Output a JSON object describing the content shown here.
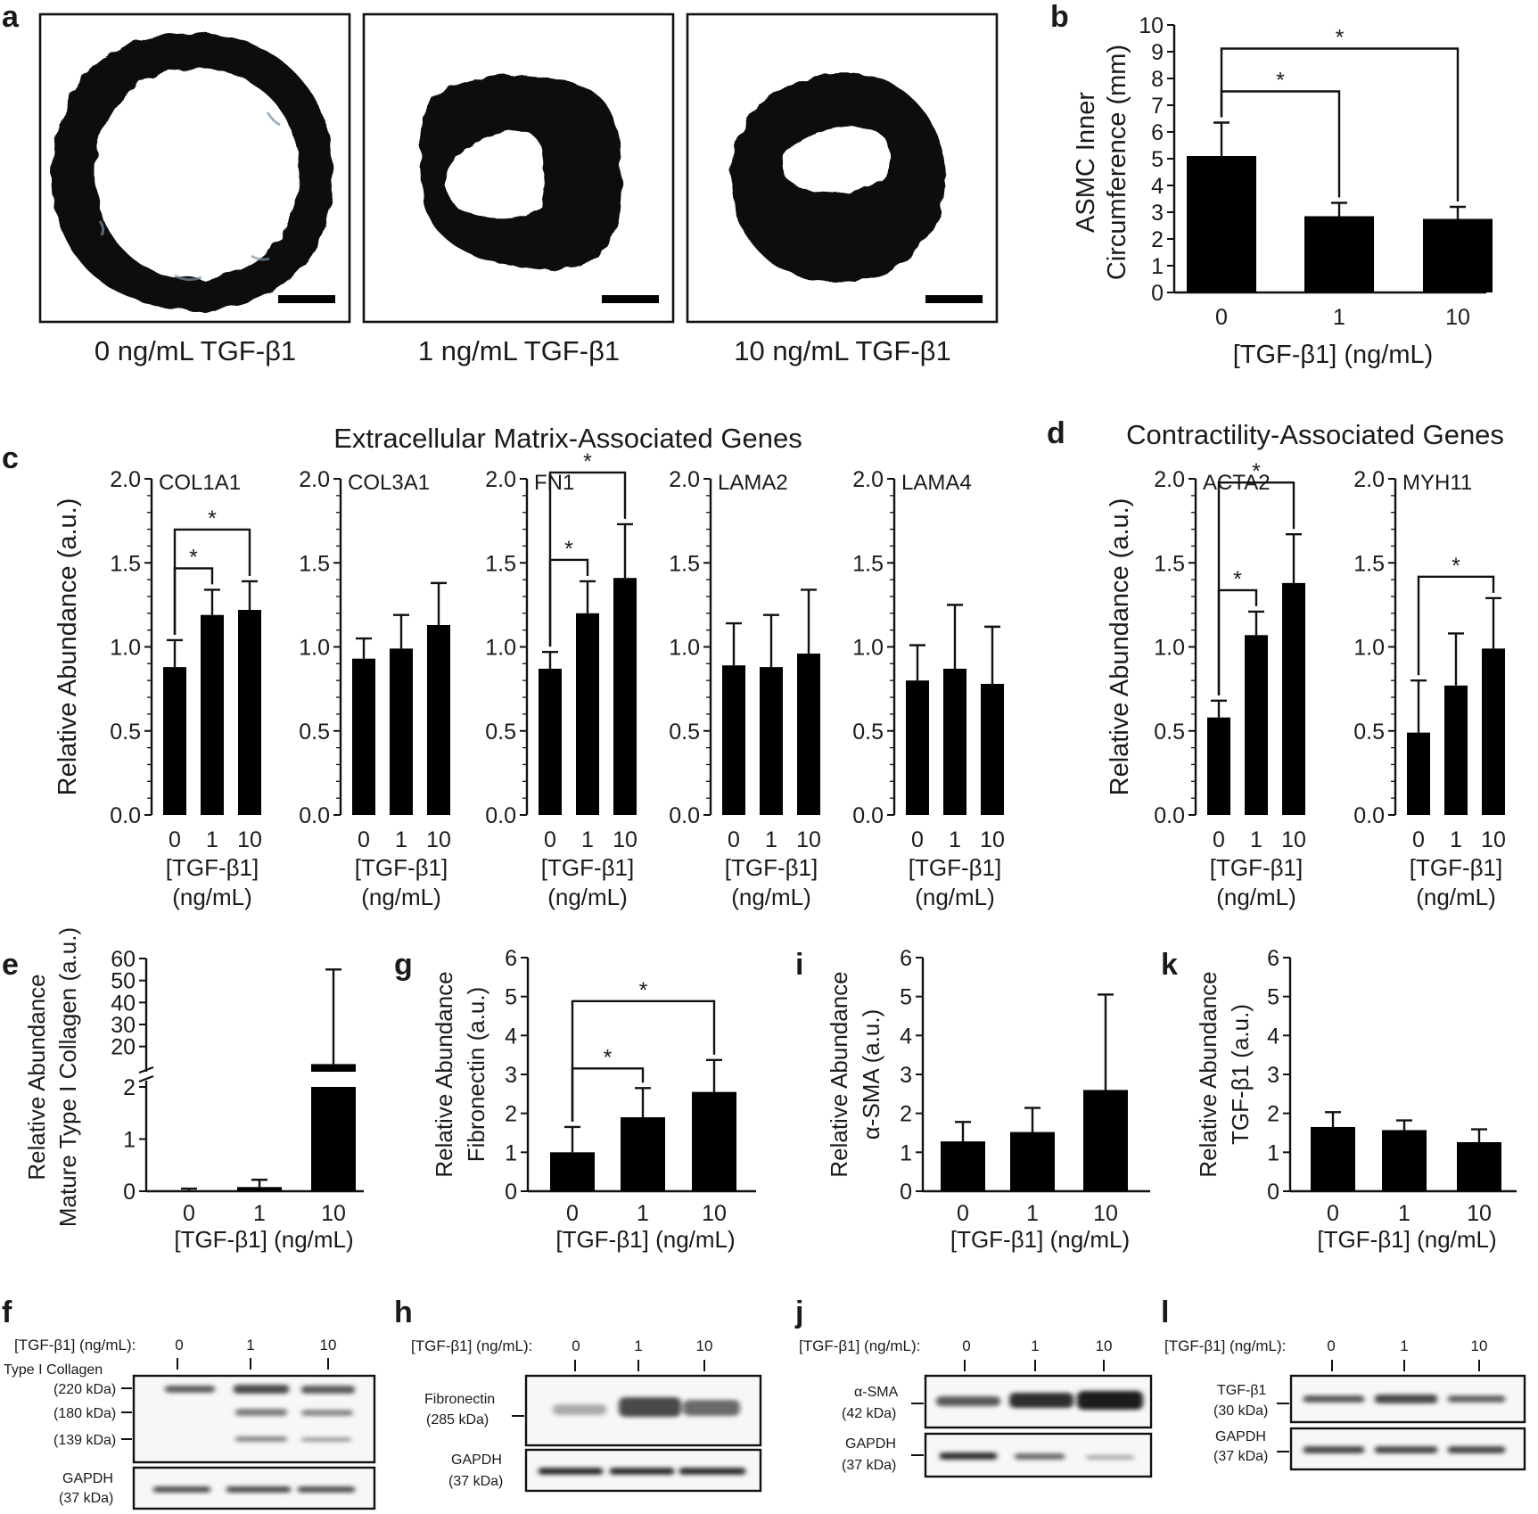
{
  "panel_labels": {
    "a": "a",
    "b": "b",
    "c": "c",
    "d": "d",
    "e": "e",
    "f": "f",
    "g": "g",
    "h": "h",
    "i": "i",
    "j": "j",
    "k": "k",
    "l": "l"
  },
  "panel_a": {
    "captions": [
      "0 ng/mL  TGF-β1",
      "1 ng/mL  TGF-β1",
      "10 ng/mL  TGF-β1"
    ]
  },
  "section_titles": {
    "ecm": "Extracellular Matrix-Associated Genes",
    "contractility": "Contractility-Associated Genes"
  },
  "common": {
    "x_categories": [
      "0",
      "1",
      "10"
    ],
    "x_title": "[TGF-β1] (ng/mL)",
    "x_title_line1": "[TGF-β1]",
    "x_title_line2": "(ng/mL)",
    "significance_marker": "*"
  },
  "chart_data": [
    {
      "id": "b",
      "type": "bar",
      "categories": [
        "0",
        "1",
        "10"
      ],
      "values": [
        5.1,
        2.85,
        2.75
      ],
      "errors": [
        1.25,
        0.5,
        0.45
      ],
      "ylabel_line1": "ASMC Inner",
      "ylabel_line2": "Circumference (mm)",
      "xlabel": "[TGF-β1] (ng/mL)",
      "ylim": [
        0,
        10
      ],
      "yticks": [
        "0",
        "1",
        "2",
        "3",
        "4",
        "5",
        "6",
        "7",
        "8",
        "9",
        "10"
      ],
      "significance": [
        [
          0,
          1
        ],
        [
          0,
          2
        ]
      ]
    },
    {
      "id": "c",
      "type": "bar",
      "ylabel": "Relative Abundance (a.u.)",
      "ylim": [
        0,
        2.0
      ],
      "yticks": [
        "0.0",
        "0.5",
        "1.0",
        "1.5",
        "2.0"
      ],
      "categories": [
        "0",
        "1",
        "10"
      ],
      "xlabel": "[TGF-β1] (ng/mL)",
      "series": [
        {
          "name": "COL1A1",
          "values": [
            0.88,
            1.19,
            1.22
          ],
          "errors": [
            0.16,
            0.15,
            0.17
          ],
          "significance": [
            [
              0,
              1
            ],
            [
              0,
              2
            ]
          ]
        },
        {
          "name": "COL3A1",
          "values": [
            0.93,
            0.99,
            1.13
          ],
          "errors": [
            0.12,
            0.2,
            0.25
          ],
          "significance": []
        },
        {
          "name": "FN1",
          "values": [
            0.87,
            1.2,
            1.41
          ],
          "errors": [
            0.1,
            0.19,
            0.32
          ],
          "significance": [
            [
              0,
              1
            ],
            [
              0,
              2
            ]
          ]
        },
        {
          "name": "LAMA2",
          "values": [
            0.89,
            0.88,
            0.96
          ],
          "errors": [
            0.25,
            0.31,
            0.38
          ],
          "significance": []
        },
        {
          "name": "LAMA4",
          "values": [
            0.8,
            0.87,
            0.78
          ],
          "errors": [
            0.21,
            0.38,
            0.34
          ],
          "significance": []
        }
      ]
    },
    {
      "id": "d",
      "type": "bar",
      "ylabel": "Relative Abundance (a.u.)",
      "ylim": [
        0,
        2.0
      ],
      "yticks": [
        "0.0",
        "0.5",
        "1.0",
        "1.5",
        "2.0"
      ],
      "categories": [
        "0",
        "1",
        "10"
      ],
      "xlabel": "[TGF-β1] (ng/mL)",
      "series": [
        {
          "name": "ACTA2",
          "values": [
            0.58,
            1.07,
            1.38
          ],
          "errors": [
            0.1,
            0.14,
            0.29
          ],
          "significance": [
            [
              0,
              1
            ],
            [
              0,
              2
            ]
          ]
        },
        {
          "name": "MYH11",
          "values": [
            0.49,
            0.77,
            0.99
          ],
          "errors": [
            0.31,
            0.31,
            0.3
          ],
          "significance": [
            [
              0,
              2
            ]
          ]
        }
      ]
    },
    {
      "id": "e",
      "type": "bar",
      "categories": [
        "0",
        "1",
        "10"
      ],
      "values": [
        0.0,
        0.08,
        12.0
      ],
      "errors": [
        0.05,
        0.14,
        43.0
      ],
      "ylabel_line1": "Relative  Abundance",
      "ylabel_line2": "Mature Type  I Collagen  (a.u.)",
      "xlabel": "[TGF-β1]  (ng/mL)",
      "yticks_lower": [
        "0",
        "1",
        "2"
      ],
      "yticks_upper": [
        "20",
        "30",
        "40",
        "50",
        "60"
      ],
      "axis_break": true,
      "significance": []
    },
    {
      "id": "g",
      "type": "bar",
      "categories": [
        "0",
        "1",
        "10"
      ],
      "values": [
        1.0,
        1.9,
        2.55
      ],
      "errors": [
        0.65,
        0.75,
        0.82
      ],
      "ylabel_line1": "Relative  Abundance",
      "ylabel_line2": "Fibronectin  (a.u.)",
      "xlabel": "[TGF-β1]  (ng/mL)",
      "ylim": [
        0,
        6
      ],
      "yticks": [
        "0",
        "1",
        "2",
        "3",
        "4",
        "5",
        "6"
      ],
      "significance": [
        [
          0,
          1
        ],
        [
          0,
          2
        ]
      ]
    },
    {
      "id": "i",
      "type": "bar",
      "categories": [
        "0",
        "1",
        "10"
      ],
      "values": [
        1.28,
        1.52,
        2.6
      ],
      "errors": [
        0.5,
        0.62,
        2.45
      ],
      "ylabel_line1": "Relative  Abundance",
      "ylabel_line2": "α-SMA  (a.u.)",
      "xlabel": "[TGF-β1]  (ng/mL)",
      "ylim": [
        0,
        6
      ],
      "yticks": [
        "0",
        "1",
        "2",
        "3",
        "4",
        "5",
        "6"
      ],
      "significance": []
    },
    {
      "id": "k",
      "type": "bar",
      "categories": [
        "0",
        "1",
        "10"
      ],
      "values": [
        1.65,
        1.57,
        1.26
      ],
      "errors": [
        0.38,
        0.25,
        0.33
      ],
      "ylabel_line1": "Relative  Abundance",
      "ylabel_line2": "TGF-β1  (a.u.)",
      "xlabel": "[TGF-β1]  (ng/mL)",
      "ylim": [
        0,
        6
      ],
      "yticks": [
        "0",
        "1",
        "2",
        "3",
        "4",
        "5",
        "6"
      ],
      "significance": []
    }
  ],
  "blots": {
    "f": {
      "header": "[TGF-β1] (ng/mL):",
      "lanes": [
        "0",
        "1",
        "10"
      ],
      "target": "Type I Collagen",
      "markers": [
        "(220 kDa)",
        "(180 kDa)",
        "(139 kDa)"
      ],
      "control": "GAPDH",
      "control_kda": "(37 kDa)"
    },
    "h": {
      "header": "[TGF-β1] (ng/mL):",
      "lanes": [
        "0",
        "1",
        "10"
      ],
      "target": "Fibronectin",
      "target_kda": "(285 kDa)",
      "control": "GAPDH",
      "control_kda": "(37 kDa)"
    },
    "j": {
      "header": "[TGF-β1] (ng/mL):",
      "lanes": [
        "0",
        "1",
        "10"
      ],
      "target": "α-SMA",
      "target_kda": "(42 kDa)",
      "control": "GAPDH",
      "control_kda": "(37 kDa)"
    },
    "l": {
      "header": "[TGF-β1] (ng/mL):",
      "lanes": [
        "0",
        "1",
        "10"
      ],
      "target": "TGF-β1",
      "target_kda": "(30 kDa)",
      "control": "GAPDH",
      "control_kda": "(37 kDa)"
    }
  }
}
